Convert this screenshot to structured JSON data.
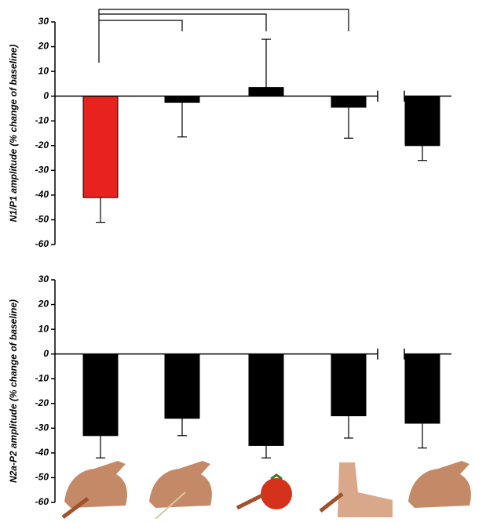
{
  "chart_data": [
    {
      "type": "bar",
      "ylabel": "N1/P1 amplitude (% change of baseline)",
      "values": [
        -41,
        -2.5,
        3.5,
        -4.5,
        -20
      ],
      "errors": [
        10,
        14,
        19.5,
        12.5,
        6
      ],
      "colors": [
        "#e8231f",
        "#000000",
        "#000000",
        "#000000",
        "#000000"
      ],
      "ylim": [
        -60,
        30
      ],
      "yticks": [
        -60,
        -50,
        -40,
        -30,
        -20,
        -10,
        0,
        10,
        20,
        30
      ]
    },
    {
      "type": "bar",
      "ylabel": "N2a-P2 amplitude (% change of baseline)",
      "values": [
        -33,
        -26,
        -37,
        -25,
        -28
      ],
      "errors": [
        9,
        7,
        5,
        9,
        10
      ],
      "colors": [
        "#000000",
        "#000000",
        "#000000",
        "#000000",
        "#000000"
      ],
      "ylim": [
        -60,
        30
      ],
      "yticks": [
        -60,
        -50,
        -40,
        -30,
        -20,
        -10,
        0,
        10,
        20,
        30
      ]
    }
  ]
}
